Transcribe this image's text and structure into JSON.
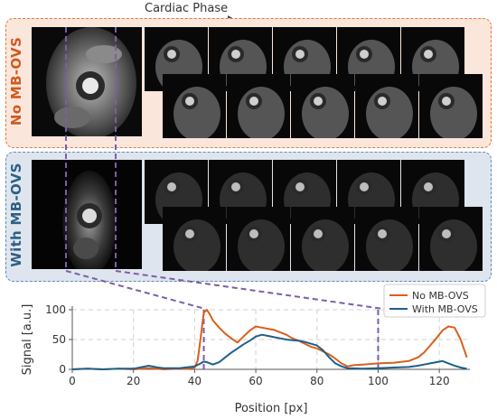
{
  "header": {
    "cardiac_phase_label": "Cardiac Phase"
  },
  "panels": {
    "no_ovs": {
      "label": "No MB-OVS",
      "color": "#e07b39",
      "bg": "#fbe6dc"
    },
    "with_ovs": {
      "label": "With MB-OVS",
      "color": "#5b8db8",
      "bg": "#dfe5ee"
    }
  },
  "thumbnails": {
    "rows_per_panel": 2,
    "per_row": 5
  },
  "chart_data": {
    "type": "line",
    "xlabel": "Position [px]",
    "ylabel": "Signal [a.u.]",
    "xlim": [
      0,
      130
    ],
    "ylim": [
      0,
      100
    ],
    "xticks": [
      0,
      20,
      40,
      60,
      80,
      100,
      120
    ],
    "yticks": [
      0,
      50,
      100
    ],
    "grid": true,
    "legend_position": "top-right",
    "roi_markers_x": [
      43,
      100
    ],
    "series": [
      {
        "name": "No MB-OVS",
        "color": "#d95f1c",
        "x": [
          0,
          5,
          10,
          15,
          20,
          25,
          30,
          35,
          38,
          40,
          41,
          42,
          43,
          44,
          45,
          46,
          48,
          50,
          52,
          54,
          56,
          58,
          60,
          62,
          64,
          66,
          68,
          70,
          72,
          74,
          76,
          78,
          80,
          82,
          84,
          86,
          88,
          90,
          92,
          95,
          100,
          105,
          110,
          113,
          115,
          117,
          119,
          121,
          123,
          125,
          127,
          129
        ],
        "y": [
          0,
          1,
          0,
          1,
          0,
          2,
          0,
          1,
          1,
          3,
          15,
          55,
          95,
          100,
          92,
          82,
          70,
          60,
          52,
          45,
          55,
          65,
          72,
          70,
          68,
          66,
          62,
          58,
          52,
          48,
          43,
          38,
          35,
          30,
          25,
          18,
          10,
          5,
          7,
          8,
          10,
          11,
          14,
          20,
          28,
          40,
          52,
          65,
          72,
          70,
          50,
          20
        ]
      },
      {
        "name": "With MB-OVS",
        "color": "#1f5f8b",
        "x": [
          0,
          5,
          10,
          15,
          20,
          22,
          25,
          28,
          30,
          35,
          40,
          42,
          43,
          44,
          46,
          48,
          50,
          52,
          54,
          56,
          58,
          60,
          62,
          64,
          66,
          68,
          70,
          72,
          74,
          76,
          78,
          80,
          82,
          84,
          86,
          88,
          90,
          95,
          100,
          105,
          110,
          113,
          115,
          117,
          119,
          121,
          123,
          125,
          127,
          129
        ],
        "y": [
          0,
          1,
          0,
          1,
          1,
          3,
          6,
          3,
          2,
          2,
          5,
          10,
          13,
          12,
          8,
          12,
          20,
          28,
          35,
          42,
          48,
          55,
          58,
          56,
          54,
          52,
          50,
          49,
          48,
          46,
          43,
          40,
          32,
          20,
          10,
          5,
          2,
          1,
          2,
          3,
          4,
          6,
          8,
          10,
          12,
          14,
          10,
          6,
          3,
          1
        ]
      }
    ]
  }
}
